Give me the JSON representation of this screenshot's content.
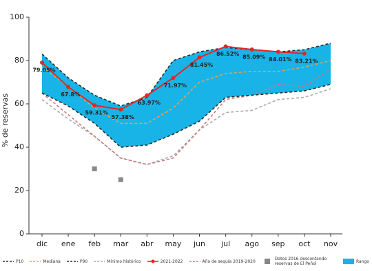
{
  "chart_data": {
    "type": "line",
    "y_label": "% de reservas",
    "categories": [
      "dic",
      "ene",
      "feb",
      "mar",
      "abr",
      "may",
      "jun",
      "jul",
      "ago",
      "sep",
      "oct",
      "nov"
    ],
    "ylim": [
      0,
      100
    ],
    "yticks": [
      0,
      20,
      40,
      60,
      80,
      100
    ],
    "series": [
      {
        "name": "P10",
        "color": "#2b2b2b",
        "style": "dashed",
        "values": [
          65,
          59,
          51,
          40,
          41,
          46,
          52,
          63,
          64,
          65,
          66,
          69
        ]
      },
      {
        "name": "Mediana",
        "color": "#e8a050",
        "style": "dashed",
        "values": [
          77,
          68,
          58,
          51,
          51,
          58,
          70,
          74,
          75,
          75,
          77,
          80
        ]
      },
      {
        "name": "P90",
        "color": "#2b2b2b",
        "style": "dashed",
        "values": [
          83,
          72,
          64,
          59,
          63,
          80,
          84,
          86,
          85,
          84,
          85,
          88
        ]
      },
      {
        "name": "Mínimo histórico",
        "color": "#aaaaaa",
        "style": "dashed",
        "values": [
          62,
          53,
          45,
          35,
          32,
          36,
          48,
          56,
          57,
          62,
          63,
          67
        ]
      },
      {
        "name": "2021-2022",
        "color": "#e02828",
        "style": "solid",
        "values": [
          79.05,
          67.8,
          59.31,
          57.38,
          63.97,
          71.97,
          81.45,
          86.52,
          85.09,
          84.01,
          83.21,
          null
        ],
        "value_labels": [
          "79.05%",
          "67.8%",
          "59.31%",
          "57.38%",
          "63.97%",
          "71.97%",
          "81.45%",
          "86.52%",
          "85.09%",
          "84.01%",
          "83.21%",
          null
        ]
      },
      {
        "name": "Año de sequía 2019-2020",
        "color": "#c87a7a",
        "style": "dashed",
        "values": [
          65,
          55,
          45,
          35,
          32,
          35,
          48,
          62,
          64,
          69,
          68,
          76
        ]
      },
      {
        "name": "Datos 2016 descontando reservas de El Peñol",
        "color": "#888888",
        "style": "markers",
        "values": [
          null,
          null,
          30,
          25,
          null,
          null,
          null,
          null,
          null,
          null,
          null,
          null
        ]
      }
    ],
    "range": {
      "name": "Rango",
      "color": "#18b4e8",
      "upper": 2,
      "lower": 0
    }
  }
}
